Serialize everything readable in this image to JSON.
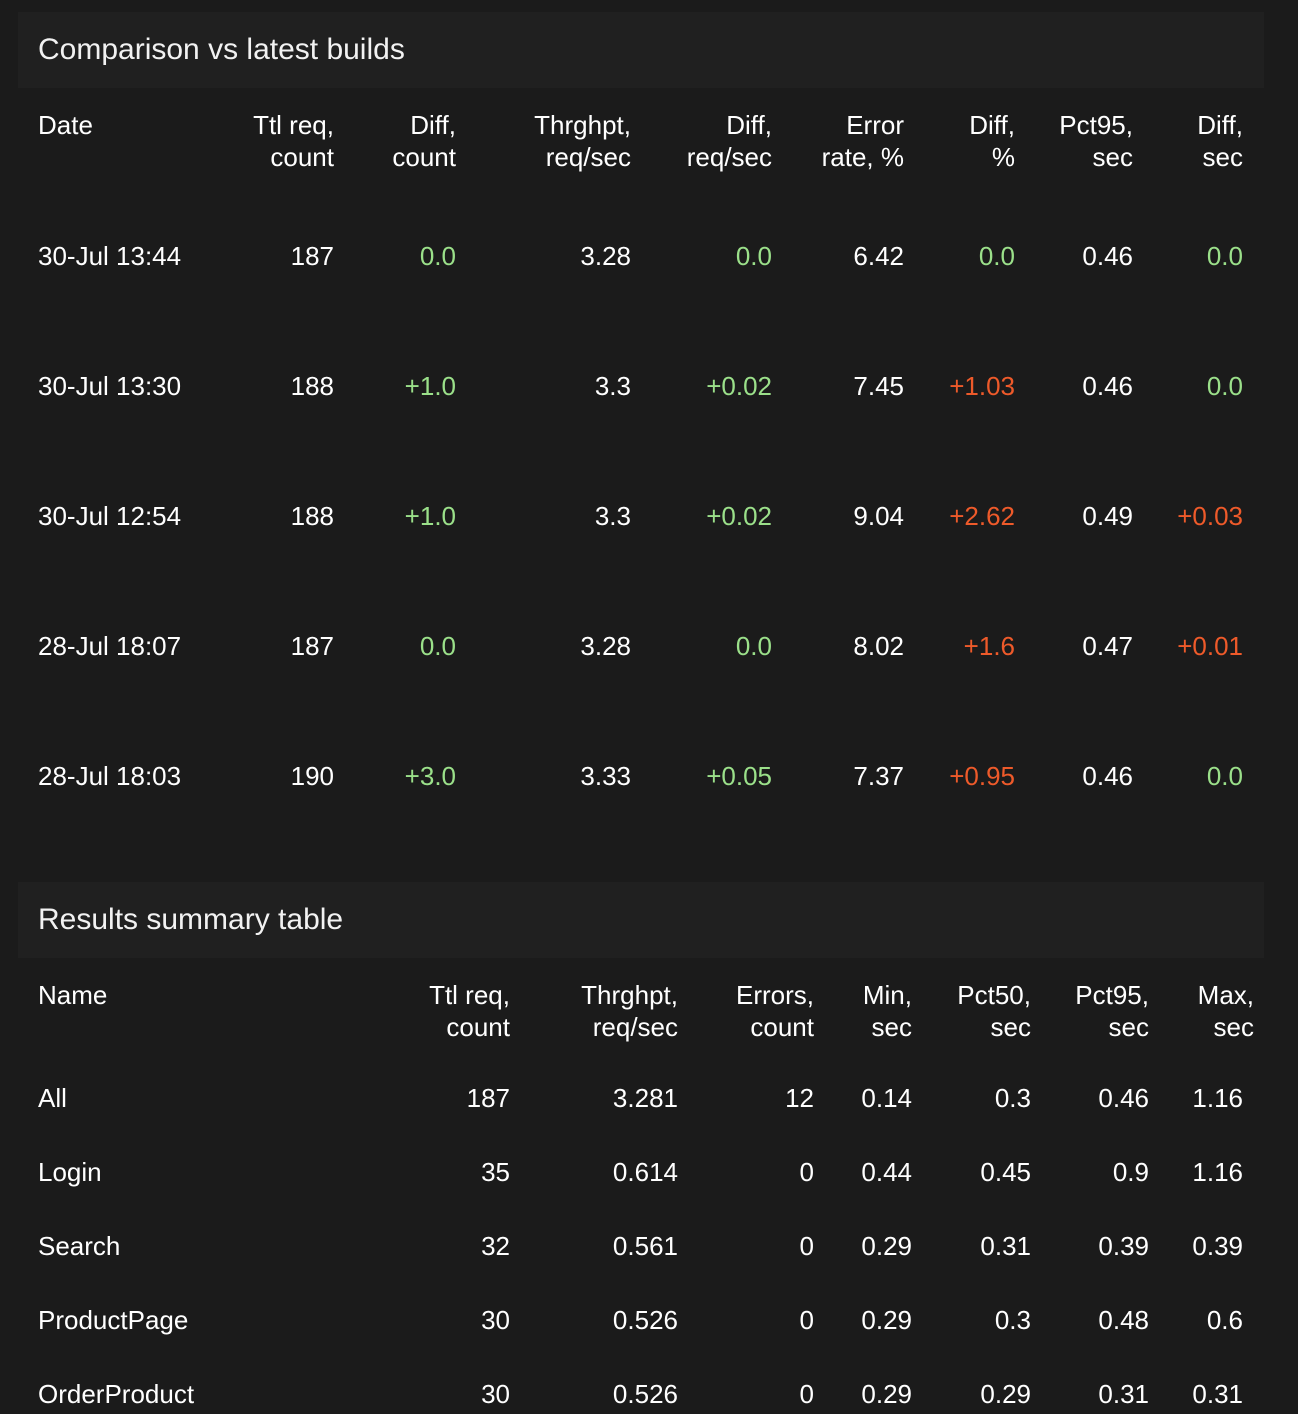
{
  "comparison": {
    "title": "Comparison vs latest builds",
    "headers": [
      [
        "Date",
        ""
      ],
      [
        "Ttl req,",
        "count"
      ],
      [
        "Diff,",
        "count"
      ],
      [
        "Thrghpt,",
        "req/sec"
      ],
      [
        "Diff,",
        "req/sec"
      ],
      [
        "Error",
        "rate, %"
      ],
      [
        "Diff,",
        "%"
      ],
      [
        "Pct95,",
        "sec"
      ],
      [
        "Diff,",
        "sec"
      ]
    ],
    "rows": [
      {
        "date": "30-Jul 13:44",
        "ttl": "187",
        "diff_count": "0.0",
        "thr": "3.28",
        "diff_thr": "0.0",
        "err": "6.42",
        "diff_err": "0.0",
        "pct95": "0.46",
        "diff_pct95": "0.0"
      },
      {
        "date": "30-Jul 13:30",
        "ttl": "188",
        "diff_count": "+1.0",
        "thr": "3.3",
        "diff_thr": "+0.02",
        "err": "7.45",
        "diff_err": "+1.03",
        "pct95": "0.46",
        "diff_pct95": "0.0"
      },
      {
        "date": "30-Jul 12:54",
        "ttl": "188",
        "diff_count": "+1.0",
        "thr": "3.3",
        "diff_thr": "+0.02",
        "err": "9.04",
        "diff_err": "+2.62",
        "pct95": "0.49",
        "diff_pct95": "+0.03"
      },
      {
        "date": "28-Jul 18:07",
        "ttl": "187",
        "diff_count": "0.0",
        "thr": "3.28",
        "diff_thr": "0.0",
        "err": "8.02",
        "diff_err": "+1.6",
        "pct95": "0.47",
        "diff_pct95": "+0.01"
      },
      {
        "date": "28-Jul 18:03",
        "ttl": "190",
        "diff_count": "+3.0",
        "thr": "3.33",
        "diff_thr": "+0.05",
        "err": "7.37",
        "diff_err": "+0.95",
        "pct95": "0.46",
        "diff_pct95": "0.0"
      }
    ]
  },
  "summary": {
    "title": "Results summary table",
    "headers": [
      [
        "Name",
        ""
      ],
      [
        "Ttl req,",
        "count"
      ],
      [
        "Thrghpt,",
        "req/sec"
      ],
      [
        "Errors,",
        "count"
      ],
      [
        "Min,",
        "sec"
      ],
      [
        "Pct50,",
        "sec"
      ],
      [
        "Pct95,",
        "sec"
      ],
      [
        "Max,",
        "sec"
      ]
    ],
    "rows": [
      {
        "name": "All",
        "ttl": "187",
        "thr": "3.281",
        "errors": "12",
        "min": "0.14",
        "pct50": "0.3",
        "pct95": "0.46",
        "max": "1.16"
      },
      {
        "name": "Login",
        "ttl": "35",
        "thr": "0.614",
        "errors": "0",
        "min": "0.44",
        "pct50": "0.45",
        "pct95": "0.9",
        "max": "1.16"
      },
      {
        "name": "Search",
        "ttl": "32",
        "thr": "0.561",
        "errors": "0",
        "min": "0.29",
        "pct50": "0.31",
        "pct95": "0.39",
        "max": "0.39"
      },
      {
        "name": "ProductPage",
        "ttl": "30",
        "thr": "0.526",
        "errors": "0",
        "min": "0.29",
        "pct50": "0.3",
        "pct95": "0.48",
        "max": "0.6"
      },
      {
        "name": "OrderProduct",
        "ttl": "30",
        "thr": "0.526",
        "errors": "0",
        "min": "0.29",
        "pct50": "0.29",
        "pct95": "0.31",
        "max": "0.31"
      }
    ]
  },
  "colors": {
    "background": "#1b1b1b",
    "panel_title_bg": "#202020",
    "good": "#9be08a",
    "bad": "#ee5a2a",
    "text": "#ffffff"
  }
}
